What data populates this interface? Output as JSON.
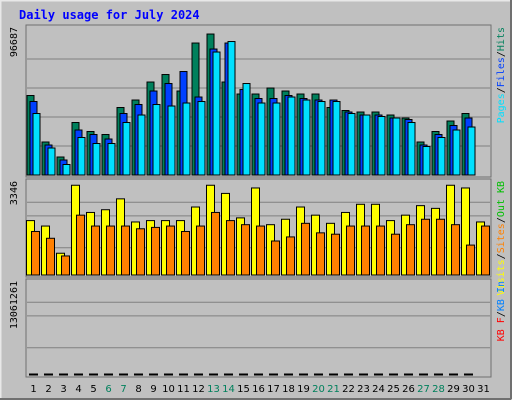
{
  "chart_data": {
    "type": "bar",
    "title": "Daily usage for July 2024",
    "categories": [
      "1",
      "2",
      "3",
      "4",
      "5",
      "6",
      "7",
      "8",
      "9",
      "10",
      "11",
      "12",
      "13",
      "14",
      "15",
      "16",
      "17",
      "18",
      "19",
      "20",
      "21",
      "22",
      "23",
      "24",
      "25",
      "26",
      "27",
      "28",
      "29",
      "30",
      "31"
    ],
    "weekend_days": [
      "6",
      "7",
      "13",
      "14",
      "20",
      "21",
      "27",
      "28"
    ],
    "colors": {
      "background": "#C0C0C0",
      "frame_light": "#E8E8E8",
      "frame_dark": "#707070",
      "title": "#0000FF",
      "weekday_label": "#000000",
      "weekend_label": "#00805C",
      "hits": "#00805C",
      "files": "#0040FF",
      "pages": "#00E0FF",
      "visits": "#FFFF00",
      "sites": "#FF8000",
      "kbin": "#0080FF",
      "kbout": "#00C000",
      "kbf": "#FF0000"
    },
    "panels": [
      {
        "max_label": "96687",
        "ymax": 96687,
        "legend": [
          {
            "text": "Pages",
            "color": "#00E0FF"
          },
          {
            "text": "Files",
            "color": "#0040FF"
          },
          {
            "text": "Hits",
            "color": "#00805C"
          }
        ],
        "series": [
          {
            "name": "Hits",
            "color": "#00805C",
            "values": [
              53000,
              22000,
              12000,
              35000,
              29000,
              27000,
              45000,
              50000,
              62000,
              67000,
              56000,
              88000,
              94000,
              62000,
              54000,
              54000,
              58000,
              56000,
              54000,
              54000,
              45000,
              43000,
              42000,
              42000,
              40000,
              38000,
              22000,
              29000,
              36000,
              41000,
              0
            ]
          },
          {
            "name": "Files",
            "color": "#0040FF",
            "values": [
              49000,
              20000,
              10000,
              30000,
              27000,
              24000,
              41000,
              47000,
              56000,
              61000,
              69000,
              52000,
              84000,
              88000,
              57000,
              51000,
              51000,
              53000,
              51000,
              50000,
              50000,
              42000,
              40000,
              40000,
              38000,
              37000,
              20000,
              27000,
              33000,
              38000,
              0
            ]
          },
          {
            "name": "Pages",
            "color": "#00E0FF",
            "values": [
              41000,
              18000,
              7000,
              25000,
              21000,
              21000,
              35000,
              40000,
              47000,
              46000,
              48000,
              49000,
              82000,
              89000,
              61000,
              48000,
              48000,
              52000,
              50000,
              49000,
              49000,
              41000,
              40000,
              39000,
              38000,
              35000,
              19000,
              25000,
              30000,
              32000,
              0
            ]
          }
        ]
      },
      {
        "max_label": "3346",
        "ymax": 3346,
        "legend": [
          {
            "text": "Visits",
            "color": "#FFFF00"
          },
          {
            "text": "Sites",
            "color": "#FF8000"
          },
          {
            "text": "Out",
            "color": "#00C000"
          },
          {
            "text": "KB",
            "color": "#00C000"
          }
        ],
        "series": [
          {
            "name": "Visits",
            "color": "#FFFF00",
            "values": [
              2000,
              1800,
              800,
              3300,
              2300,
              2400,
              2800,
              1950,
              2000,
              2000,
              2000,
              2500,
              3300,
              3000,
              2100,
              3200,
              1850,
              2050,
              2500,
              2200,
              1900,
              2300,
              2600,
              2600,
              2000,
              2200,
              2550,
              2450,
              3300,
              3200,
              1950
            ]
          },
          {
            "name": "Sites",
            "color": "#FF8000",
            "values": [
              1600,
              1350,
              700,
              2200,
              1800,
              1800,
              1800,
              1700,
              1750,
              1800,
              1600,
              1800,
              2300,
              2000,
              1850,
              1800,
              1250,
              1400,
              1900,
              1550,
              1500,
              1800,
              1800,
              1800,
              1500,
              1850,
              2050,
              2050,
              1850,
              1100,
              1800
            ]
          }
        ]
      },
      {
        "max_label": "13061261",
        "ymax": 13061261,
        "legend": [
          {
            "text": "KB",
            "color": "#FF0000"
          },
          {
            "text": "F",
            "color": "#FF0000"
          },
          {
            "text": "KB",
            "color": "#0080FF"
          },
          {
            "text": "In",
            "color": "#0080FF"
          }
        ],
        "series": [
          {
            "name": "KB F",
            "color": "#FF0000",
            "values": [
              4300,
              3300,
              800,
              5000,
              2300,
              2300,
              5700,
              4600,
              5500,
              4900,
              5600,
              5300,
              9800,
              13500,
              7500,
              5300,
              8200,
              7000,
              6700,
              6700,
              6700,
              6100,
              6400,
              4700,
              4500,
              5200,
              2000,
              4700,
              3900,
              4700,
              0
            ]
          }
        ]
      }
    ]
  }
}
